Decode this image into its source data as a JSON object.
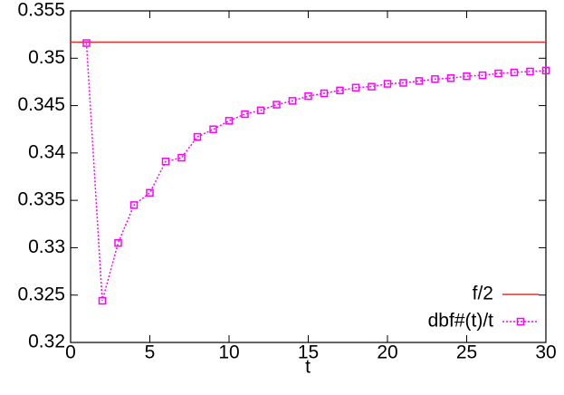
{
  "chart_data": {
    "type": "line",
    "xlabel": "t",
    "xlim": [
      0,
      30
    ],
    "xticks": [
      0,
      5,
      10,
      15,
      20,
      25,
      30
    ],
    "ylim": [
      0.32,
      0.355
    ],
    "yticks": [
      0.32,
      0.325,
      0.33,
      0.335,
      0.34,
      0.345,
      0.35,
      0.355
    ],
    "grid": false,
    "legend": "bottom-right",
    "series": [
      {
        "name": "f/2",
        "color": "#e03030",
        "marker": false,
        "x": [
          0,
          30
        ],
        "values": [
          0.3517,
          0.3517
        ]
      },
      {
        "name": "dbf#(t)/t",
        "color": "#ff00ff",
        "marker": true,
        "x": [
          1,
          2,
          3,
          4,
          5,
          6,
          7,
          8,
          9,
          10,
          11,
          12,
          13,
          14,
          15,
          16,
          17,
          18,
          19,
          20,
          21,
          22,
          23,
          24,
          25,
          26,
          27,
          28,
          29,
          30
        ],
        "values": [
          0.3516,
          0.3244,
          0.3305,
          0.3345,
          0.3358,
          0.3391,
          0.3395,
          0.3417,
          0.3425,
          0.3434,
          0.3441,
          0.3445,
          0.3451,
          0.3455,
          0.346,
          0.3463,
          0.3466,
          0.3469,
          0.347,
          0.3473,
          0.3474,
          0.3476,
          0.3478,
          0.3479,
          0.3481,
          0.3482,
          0.3484,
          0.3485,
          0.3486,
          0.3487
        ]
      }
    ]
  }
}
